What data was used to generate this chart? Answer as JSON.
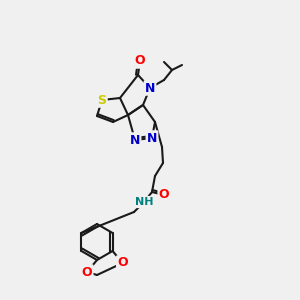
{
  "bg_color": "#f0f0f0",
  "atom_colors": {
    "S": "#cccc00",
    "O": "#ff0000",
    "N": "#0000cc",
    "NH": "#008080",
    "C": "#000000"
  },
  "bond_color": "#1a1a1a",
  "line_width": 1.5,
  "font_size": 9
}
